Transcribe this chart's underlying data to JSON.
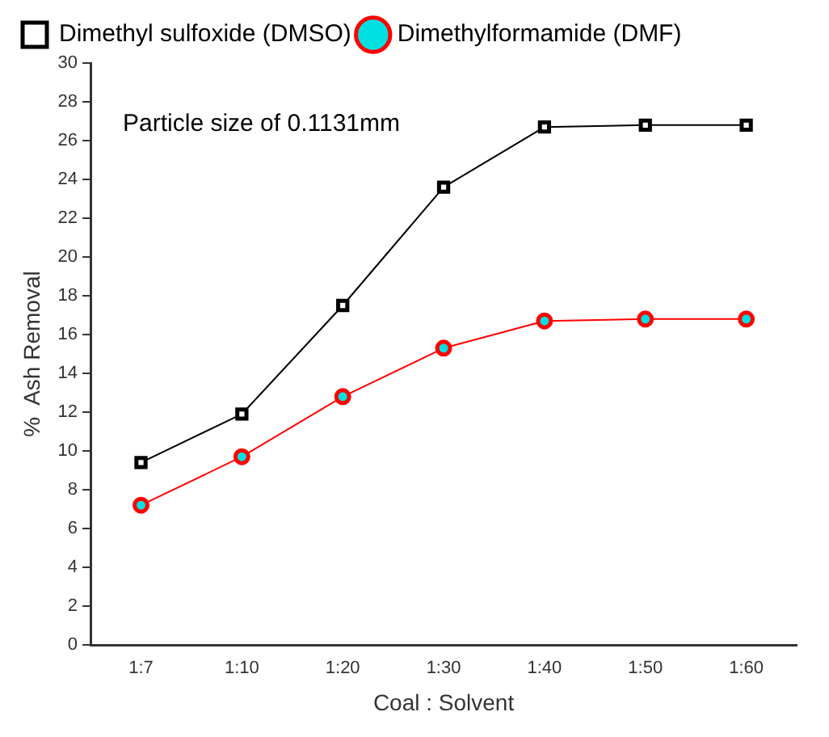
{
  "chart_data": {
    "type": "line",
    "xlabel": "Coal : Solvent",
    "ylabel": "%  Ash Removal",
    "categories": [
      "1:7",
      "1:10",
      "1:20",
      "1:30",
      "1:40",
      "1:50",
      "1:60"
    ],
    "series": [
      {
        "name": "Dimethyl sulfoxide (DMSO)",
        "color": "#000000",
        "marker": "square",
        "values": [
          9.4,
          11.9,
          17.5,
          23.6,
          26.7,
          26.8,
          26.8
        ]
      },
      {
        "name": "Dimethylformamide (DMF)",
        "color": "#ff0000",
        "marker": "circle",
        "values": [
          7.2,
          9.7,
          12.8,
          15.3,
          16.7,
          16.8,
          16.8
        ]
      }
    ],
    "ylim": [
      0,
      30
    ],
    "yticks": [
      0,
      2,
      4,
      6,
      8,
      10,
      12,
      14,
      16,
      18,
      20,
      22,
      24,
      26,
      28,
      30
    ],
    "grid": false,
    "legend": "top",
    "annotations": [
      "Particle size of 0.1131mm"
    ]
  }
}
